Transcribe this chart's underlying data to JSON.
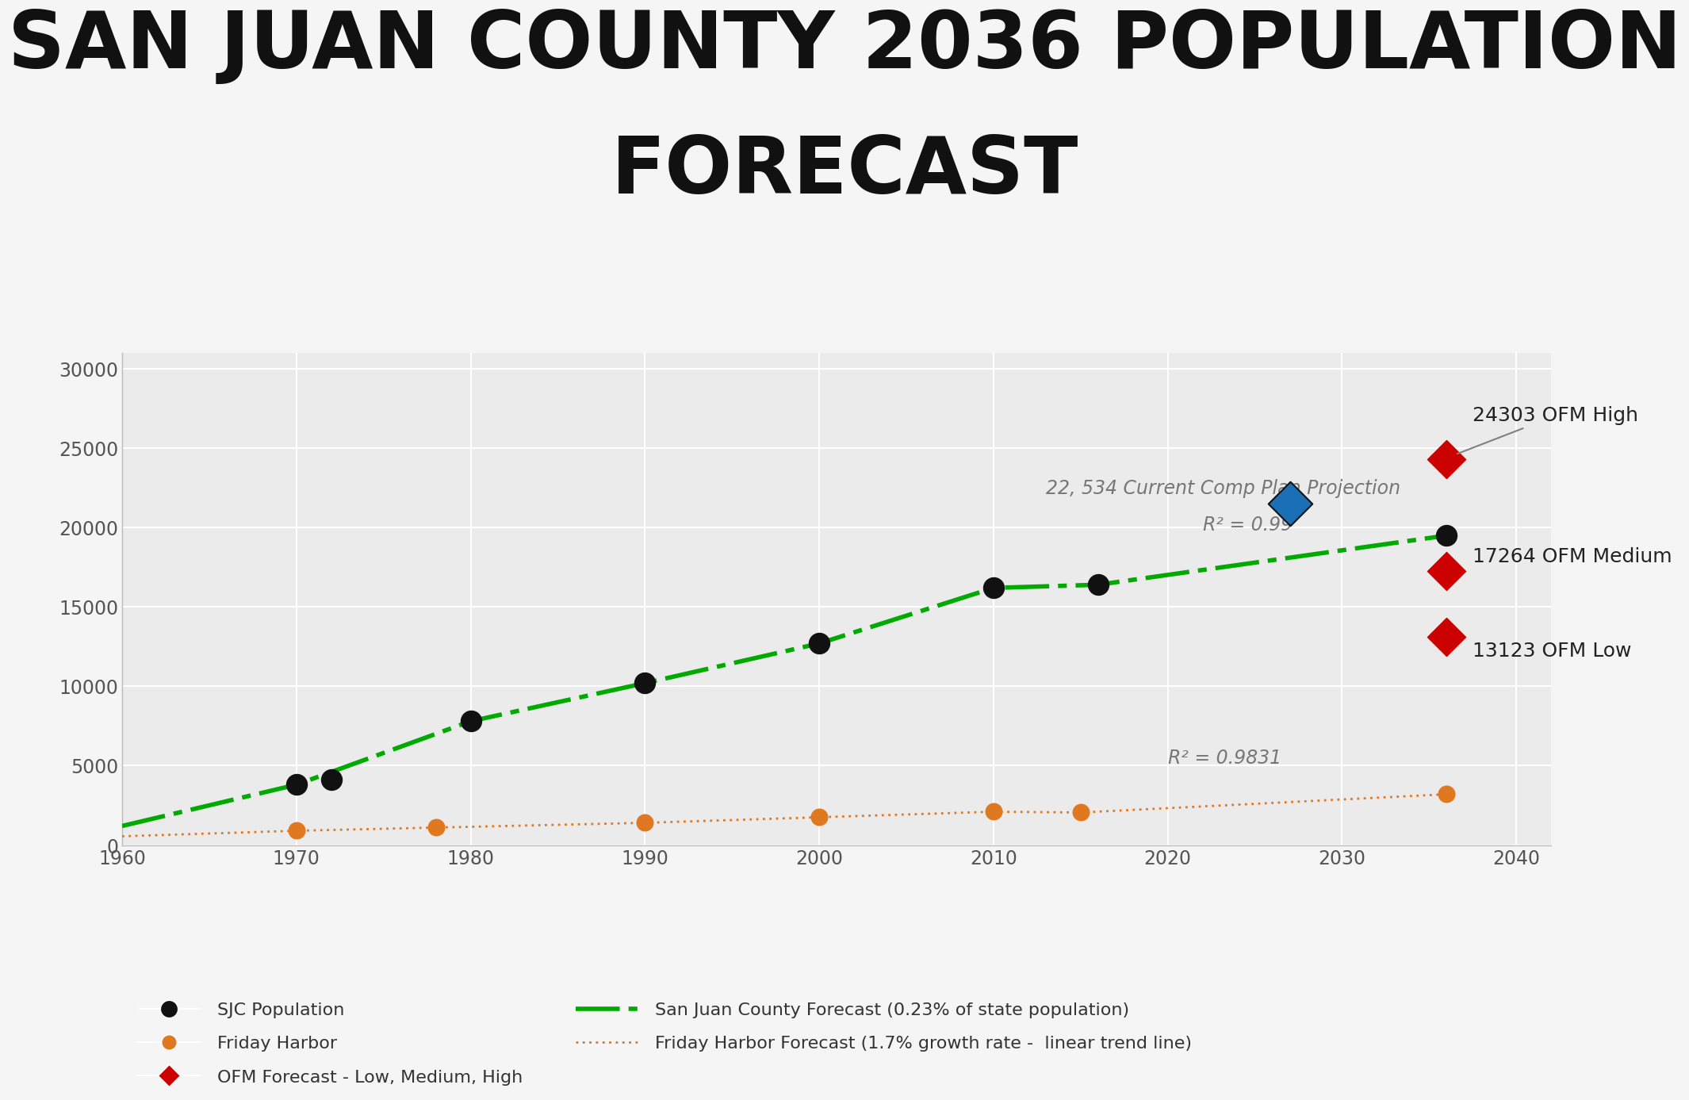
{
  "title_line1": "SAN JUAN COUNTY 2036 POPULATION",
  "title_line2": "FORECAST",
  "title_fontsize": 72,
  "background_color": "#f5f5f5",
  "plot_bg_color": "#ebebeb",
  "sjc_population_x": [
    1970,
    1972,
    1980,
    1990,
    2000,
    2010,
    2016,
    2036
  ],
  "sjc_population_y": [
    3800,
    4100,
    7800,
    10200,
    12700,
    16200,
    16400,
    19500
  ],
  "friday_harbor_x": [
    1970,
    1978,
    1990,
    2000,
    2010,
    2015,
    2036
  ],
  "friday_harbor_y": [
    900,
    1100,
    1400,
    1750,
    2100,
    2050,
    3200
  ],
  "ofm_x": 2036,
  "ofm_low": 13123,
  "ofm_medium": 17264,
  "ofm_high": 24303,
  "comp_plan_x": 2027,
  "comp_plan_y": 21500,
  "comp_plan_label": "22, 534 Current Comp Plan Projection",
  "r2_green_x": 2022,
  "r2_green_y": 19600,
  "r2_green_label": "R² = 0.99",
  "r2_orange_x": 2020,
  "r2_orange_y": 4900,
  "r2_orange_label": "R² = 0.9831",
  "green_line_x": [
    1960,
    1970,
    1980,
    1990,
    2000,
    2010,
    2016,
    2036
  ],
  "green_line_y": [
    1200,
    3800,
    7800,
    10200,
    12700,
    16200,
    16400,
    19500
  ],
  "orange_line_x": [
    1960,
    1970,
    1978,
    1990,
    2000,
    2010,
    2015,
    2036
  ],
  "orange_line_y": [
    550,
    900,
    1100,
    1400,
    1750,
    2100,
    2050,
    3200
  ],
  "xlim": [
    1960,
    2042
  ],
  "ylim": [
    0,
    31000
  ],
  "yticks": [
    0,
    5000,
    10000,
    15000,
    20000,
    25000,
    30000
  ],
  "xticks": [
    1960,
    1970,
    1980,
    1990,
    2000,
    2010,
    2020,
    2030,
    2040
  ],
  "tick_fontsize": 17,
  "annotation_fontsize": 18,
  "legend_fontsize": 16,
  "ofm_color": "#cc0000",
  "sjc_color": "#111111",
  "fh_color": "#e07820",
  "green_color": "#00aa00",
  "comp_plan_color": "#1a6fb5",
  "annotation_color": "#777777",
  "label_color": "#222222",
  "grid_color": "#ffffff"
}
